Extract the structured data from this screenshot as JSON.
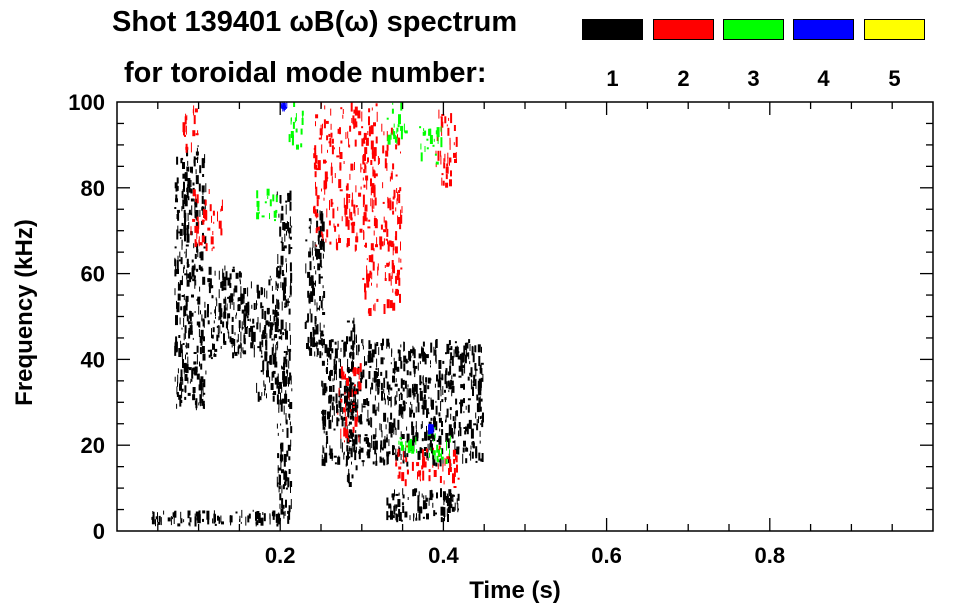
{
  "chart_data": {
    "type": "heatmap",
    "title": "Shot 139401 ωB(ω) spectrum",
    "subtitle": "for toroidal mode number:",
    "xlabel": "Time (s)",
    "ylabel": "Frequency (kHz)",
    "xlim": [
      0.0,
      1.0
    ],
    "ylim": [
      0,
      100
    ],
    "xticks": [
      "0.2",
      "0.4",
      "0.6",
      "0.8"
    ],
    "xtick_values": [
      0.2,
      0.4,
      0.6,
      0.8
    ],
    "yticks": [
      "0",
      "20",
      "40",
      "60",
      "80",
      "100"
    ],
    "ytick_values": [
      0,
      20,
      40,
      60,
      80,
      100
    ],
    "grid": false,
    "legend": {
      "placement": "top-right",
      "entries": [
        {
          "label": "1",
          "color": "#000000"
        },
        {
          "label": "2",
          "color": "#ff0000"
        },
        {
          "label": "3",
          "color": "#00ff00"
        },
        {
          "label": "4",
          "color": "#0000ff"
        },
        {
          "label": "5",
          "color": "#ffff00"
        }
      ]
    },
    "regions": [
      {
        "mode": 1,
        "t": [
          0.07,
          0.11
        ],
        "f": [
          28,
          90
        ]
      },
      {
        "mode": 1,
        "t": [
          0.11,
          0.17
        ],
        "f": [
          40,
          62
        ]
      },
      {
        "mode": 1,
        "t": [
          0.17,
          0.2
        ],
        "f": [
          30,
          60
        ]
      },
      {
        "mode": 1,
        "t": [
          0.195,
          0.215
        ],
        "f": [
          1,
          80
        ]
      },
      {
        "mode": 1,
        "t": [
          0.23,
          0.255
        ],
        "f": [
          40,
          75
        ]
      },
      {
        "mode": 1,
        "t": [
          0.28,
          0.295
        ],
        "f": [
          10,
          50
        ]
      },
      {
        "mode": 1,
        "t": [
          0.33,
          0.42
        ],
        "f": [
          2,
          10
        ]
      },
      {
        "mode": 1,
        "t": [
          0.04,
          0.2
        ],
        "f": [
          1,
          5
        ]
      },
      {
        "mode": 1,
        "t": [
          0.25,
          0.45
        ],
        "f": [
          15,
          45
        ]
      },
      {
        "mode": 2,
        "t": [
          0.08,
          0.1
        ],
        "f": [
          88,
          100
        ]
      },
      {
        "mode": 2,
        "t": [
          0.09,
          0.13
        ],
        "f": [
          65,
          80
        ]
      },
      {
        "mode": 2,
        "t": [
          0.24,
          0.32
        ],
        "f": [
          65,
          100
        ]
      },
      {
        "mode": 2,
        "t": [
          0.3,
          0.35
        ],
        "f": [
          50,
          95
        ]
      },
      {
        "mode": 2,
        "t": [
          0.39,
          0.42
        ],
        "f": [
          80,
          100
        ]
      },
      {
        "mode": 2,
        "t": [
          0.34,
          0.42
        ],
        "f": [
          10,
          20
        ]
      },
      {
        "mode": 2,
        "t": [
          0.27,
          0.3
        ],
        "f": [
          20,
          40
        ]
      },
      {
        "mode": 3,
        "t": [
          0.21,
          0.23
        ],
        "f": [
          88,
          100
        ]
      },
      {
        "mode": 3,
        "t": [
          0.17,
          0.2
        ],
        "f": [
          72,
          80
        ]
      },
      {
        "mode": 3,
        "t": [
          0.33,
          0.36
        ],
        "f": [
          90,
          100
        ]
      },
      {
        "mode": 3,
        "t": [
          0.38,
          0.41
        ],
        "f": [
          15,
          25
        ]
      },
      {
        "mode": 3,
        "t": [
          0.34,
          0.37
        ],
        "f": [
          18,
          22
        ]
      },
      {
        "mode": 3,
        "t": [
          0.37,
          0.4
        ],
        "f": [
          85,
          95
        ]
      },
      {
        "mode": 4,
        "t": [
          0.2,
          0.21
        ],
        "f": [
          98,
          100
        ]
      },
      {
        "mode": 4,
        "t": [
          0.38,
          0.39
        ],
        "f": [
          23,
          25
        ]
      }
    ]
  }
}
